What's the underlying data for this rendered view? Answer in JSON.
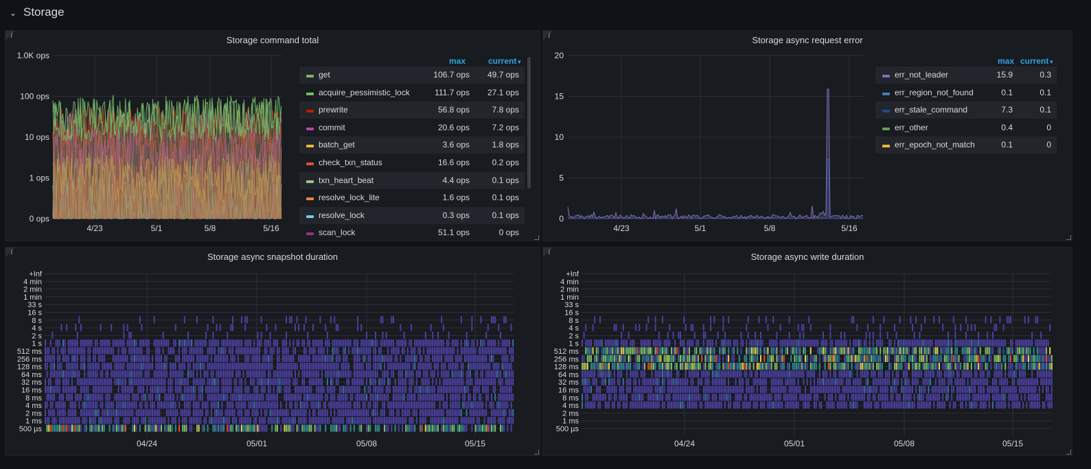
{
  "row": {
    "title": "Storage"
  },
  "panels": {
    "p1": {
      "title": "Storage command total",
      "legend": {
        "max_label": "max",
        "current_label": "current",
        "rows": [
          {
            "label": "get",
            "max": "106.7 ops",
            "current": "49.7 ops",
            "color": "#7eb26d"
          },
          {
            "label": "acquire_pessimistic_lock",
            "max": "111.7 ops",
            "current": "27.1 ops",
            "color": "#73bf69"
          },
          {
            "label": "prewrite",
            "max": "56.8 ops",
            "current": "7.8 ops",
            "color": "#bf1b00"
          },
          {
            "label": "commit",
            "max": "20.6 ops",
            "current": "7.2 ops",
            "color": "#ba43a9"
          },
          {
            "label": "batch_get",
            "max": "3.6 ops",
            "current": "1.8 ops",
            "color": "#eab839"
          },
          {
            "label": "check_txn_status",
            "max": "16.6 ops",
            "current": "0.2 ops",
            "color": "#e24d42"
          },
          {
            "label": "txn_heart_beat",
            "max": "4.4 ops",
            "current": "0.1 ops",
            "color": "#9ac48a"
          },
          {
            "label": "resolve_lock_lite",
            "max": "1.6 ops",
            "current": "0.1 ops",
            "color": "#ef843c"
          },
          {
            "label": "resolve_lock",
            "max": "0.3 ops",
            "current": "0.1 ops",
            "color": "#6ed0e0"
          },
          {
            "label": "scan_lock",
            "max": "51.1 ops",
            "current": "0 ops",
            "color": "#a02c85"
          }
        ]
      }
    },
    "p2": {
      "title": "Storage async request error",
      "legend": {
        "max_label": "max",
        "current_label": "current",
        "rows": [
          {
            "label": "err_not_leader",
            "max": "15.9",
            "current": "0.3",
            "color": "#806eb7"
          },
          {
            "label": "err_region_not_found",
            "max": "0.1",
            "current": "0.1",
            "color": "#447ebc"
          },
          {
            "label": "err_stale_command",
            "max": "7.3",
            "current": "0.1",
            "color": "#1f4b8f"
          },
          {
            "label": "err_other",
            "max": "0.4",
            "current": "0",
            "color": "#629e51"
          },
          {
            "label": "err_epoch_not_match",
            "max": "0.1",
            "current": "0",
            "color": "#eab839"
          }
        ]
      }
    },
    "p3": {
      "title": "Storage async snapshot duration"
    },
    "p4": {
      "title": "Storage async write duration"
    }
  },
  "chart_data": [
    {
      "type": "line",
      "title": "Storage command total",
      "y_scale": "log",
      "y_ticks": [
        "0 ops",
        "1 ops",
        "10 ops",
        "100 ops",
        "1.0K ops"
      ],
      "x_ticks": [
        "4/23",
        "5/1",
        "5/8",
        "5/16"
      ],
      "series": [
        {
          "name": "get",
          "max": 106.7,
          "current": 49.7
        },
        {
          "name": "acquire_pessimistic_lock",
          "max": 111.7,
          "current": 27.1
        },
        {
          "name": "prewrite",
          "max": 56.8,
          "current": 7.8
        },
        {
          "name": "commit",
          "max": 20.6,
          "current": 7.2
        },
        {
          "name": "batch_get",
          "max": 3.6,
          "current": 1.8
        },
        {
          "name": "check_txn_status",
          "max": 16.6,
          "current": 0.2
        },
        {
          "name": "txn_heart_beat",
          "max": 4.4,
          "current": 0.1
        },
        {
          "name": "resolve_lock_lite",
          "max": 1.6,
          "current": 0.1
        },
        {
          "name": "resolve_lock",
          "max": 0.3,
          "current": 0.1
        },
        {
          "name": "scan_lock",
          "max": 51.1,
          "current": 0
        }
      ],
      "legend": "right"
    },
    {
      "type": "line",
      "title": "Storage async request error",
      "y_ticks": [
        "0",
        "5",
        "10",
        "15",
        "20"
      ],
      "ylim": [
        0,
        20
      ],
      "x_ticks": [
        "4/23",
        "5/1",
        "5/8",
        "5/16"
      ],
      "series": [
        {
          "name": "err_not_leader",
          "max": 15.9,
          "current": 0.3
        },
        {
          "name": "err_region_not_found",
          "max": 0.1,
          "current": 0.1
        },
        {
          "name": "err_stale_command",
          "max": 7.3,
          "current": 0.1
        },
        {
          "name": "err_other",
          "max": 0.4,
          "current": 0
        },
        {
          "name": "err_epoch_not_match",
          "max": 0.1,
          "current": 0
        }
      ],
      "legend": "right"
    },
    {
      "type": "heatmap",
      "title": "Storage async snapshot duration",
      "y_ticks": [
        "+Inf",
        "4 min",
        "2 min",
        "1 min",
        "33 s",
        "16 s",
        "8 s",
        "4 s",
        "2 s",
        "1 s",
        "512 ms",
        "256 ms",
        "128 ms",
        "64 ms",
        "32 ms",
        "16 ms",
        "8 ms",
        "4 ms",
        "2 ms",
        "1 ms",
        "500 µs"
      ],
      "x_ticks": [
        "04/24",
        "05/01",
        "05/08",
        "05/15"
      ]
    },
    {
      "type": "heatmap",
      "title": "Storage async write duration",
      "y_ticks": [
        "+Inf",
        "4 min",
        "2 min",
        "1 min",
        "33 s",
        "16 s",
        "8 s",
        "4 s",
        "2 s",
        "1 s",
        "512 ms",
        "256 ms",
        "128 ms",
        "64 ms",
        "32 ms",
        "16 ms",
        "8 ms",
        "4 ms",
        "2 ms",
        "1 ms",
        "500 µs"
      ],
      "x_ticks": [
        "04/24",
        "05/01",
        "05/08",
        "05/15"
      ]
    }
  ]
}
